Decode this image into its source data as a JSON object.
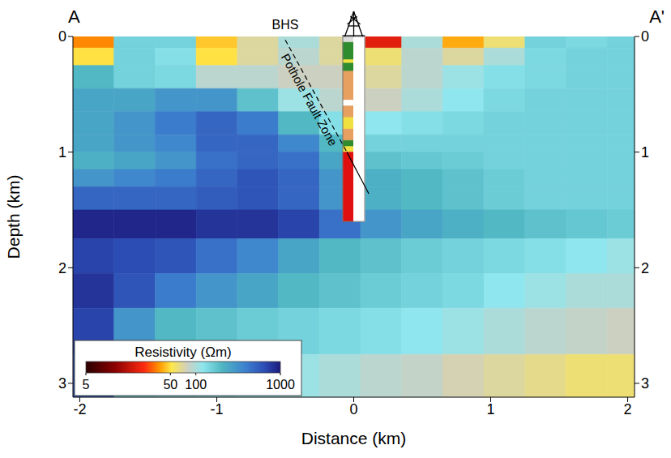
{
  "chart_data": {
    "type": "heatmap",
    "section": {
      "start": "A",
      "end": "A'"
    },
    "xlabel": "Distance (km)",
    "ylabel": "Depth (km)",
    "xlim": [
      -2.05,
      2.05
    ],
    "xticks": [
      -2,
      -1,
      0,
      1,
      2
    ],
    "ylim": [
      0,
      3.12
    ],
    "yticks": [
      0,
      1,
      2,
      3
    ],
    "x_edges": [
      -2.05,
      -1.75,
      -1.45,
      -1.15,
      -0.85,
      -0.55,
      -0.25,
      0.05,
      0.35,
      0.65,
      0.95,
      1.25,
      1.55,
      1.85,
      2.05
    ],
    "depth_edges": [
      0,
      0.1,
      0.25,
      0.45,
      0.65,
      0.85,
      1.0,
      1.15,
      1.3,
      1.5,
      1.75,
      2.05,
      2.35,
      2.75,
      3.12
    ],
    "cells": [
      [
        35,
        150,
        150,
        45,
        70,
        100,
        70,
        20,
        100,
        40,
        60,
        150,
        140,
        150
      ],
      [
        50,
        150,
        130,
        50,
        70,
        90,
        70,
        60,
        90,
        70,
        100,
        140,
        150,
        150
      ],
      [
        200,
        150,
        140,
        90,
        90,
        80,
        80,
        70,
        90,
        110,
        130,
        140,
        150,
        150
      ],
      [
        250,
        250,
        300,
        300,
        180,
        110,
        90,
        80,
        100,
        120,
        140,
        150,
        150,
        150
      ],
      [
        250,
        300,
        400,
        500,
        400,
        200,
        130,
        120,
        130,
        140,
        150,
        150,
        150,
        150
      ],
      [
        250,
        300,
        350,
        500,
        500,
        350,
        200,
        150,
        150,
        150,
        150,
        150,
        150,
        150
      ],
      [
        220,
        250,
        300,
        450,
        500,
        450,
        250,
        180,
        170,
        160,
        150,
        150,
        150,
        150
      ],
      [
        300,
        350,
        400,
        500,
        600,
        500,
        300,
        220,
        200,
        180,
        160,
        150,
        150,
        150
      ],
      [
        500,
        500,
        500,
        550,
        600,
        500,
        300,
        220,
        200,
        180,
        160,
        150,
        150,
        150
      ],
      [
        900,
        900,
        900,
        800,
        800,
        700,
        450,
        300,
        250,
        220,
        200,
        180,
        170,
        160
      ],
      [
        700,
        650,
        600,
        450,
        350,
        250,
        200,
        180,
        160,
        150,
        140,
        130,
        120,
        110
      ],
      [
        800,
        600,
        400,
        300,
        250,
        200,
        180,
        160,
        150,
        140,
        120,
        110,
        100,
        100
      ],
      [
        700,
        300,
        200,
        180,
        160,
        150,
        140,
        130,
        120,
        110,
        100,
        90,
        85,
        80
      ],
      [
        600,
        150,
        140,
        130,
        120,
        110,
        100,
        90,
        85,
        75,
        70,
        65,
        60,
        60
      ]
    ],
    "colorbar": {
      "label": "Resistivity (Ωm)",
      "range": [
        5,
        1000
      ],
      "ticks": [
        5,
        50,
        100,
        1000
      ],
      "log": true
    },
    "well": {
      "x_range": [
        -0.08,
        0.08
      ],
      "lithology": [
        {
          "top": 0,
          "bottom": 0.05,
          "color": "#dddddd"
        },
        {
          "top": 0.05,
          "bottom": 0.2,
          "color": "#2e8b2e"
        },
        {
          "top": 0.2,
          "bottom": 0.23,
          "color": "#f0e040"
        },
        {
          "top": 0.23,
          "bottom": 0.3,
          "color": "#2e8b2e"
        },
        {
          "top": 0.3,
          "bottom": 0.55,
          "color": "#e8a060"
        },
        {
          "top": 0.55,
          "bottom": 0.6,
          "color": "#ffffff"
        },
        {
          "top": 0.6,
          "bottom": 0.7,
          "color": "#e8a060"
        },
        {
          "top": 0.7,
          "bottom": 0.8,
          "color": "#f0e040"
        },
        {
          "top": 0.8,
          "bottom": 0.9,
          "color": "#e8a060"
        },
        {
          "top": 0.9,
          "bottom": 0.95,
          "color": "#2e8b2e"
        },
        {
          "top": 0.95,
          "bottom": 1.0,
          "color": "#f0e040"
        },
        {
          "top": 1.0,
          "bottom": 1.6,
          "color": "#e01010"
        }
      ]
    },
    "fault": {
      "label": "Pothole Fault Zone",
      "top_label": "BHS",
      "dashed": [
        [
          -0.5,
          0.03
        ],
        [
          -0.05,
          1.0
        ]
      ],
      "solid": [
        [
          -0.05,
          1.0
        ],
        [
          0.11,
          1.36
        ]
      ]
    }
  }
}
